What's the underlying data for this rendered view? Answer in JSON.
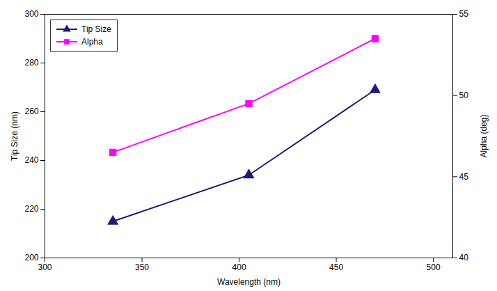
{
  "chart_data": {
    "type": "line",
    "x": [
      335,
      405,
      470
    ],
    "xlabel": "Wavelength (nm)",
    "ylabel": "Tip Size (nm)",
    "y2label": "Alpha (deg)",
    "xlim": [
      300,
      510
    ],
    "xticks": [
      300,
      350,
      400,
      450,
      500
    ],
    "ylim": [
      200,
      300
    ],
    "yticks": [
      200,
      220,
      240,
      260,
      280,
      300
    ],
    "y2lim": [
      40,
      55
    ],
    "y2ticks": [
      40,
      45,
      50,
      55
    ],
    "grid": false,
    "legend": "upper left",
    "series": [
      {
        "name": "Tip Size",
        "color": "#1c1c72",
        "marker": "triangle",
        "values": [
          215,
          234,
          269
        ]
      },
      {
        "name": "Alpha",
        "color": "#ff00ff",
        "marker": "square",
        "axis": "y2",
        "values": [
          46.5,
          49.5,
          53.5
        ]
      }
    ]
  }
}
